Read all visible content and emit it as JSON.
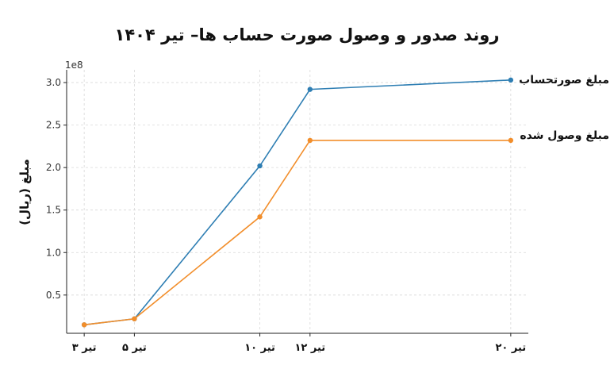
{
  "chart_data": {
    "type": "line",
    "title": "روند صدور و وصول صورت حساب ها– تیر ۱۴۰۴",
    "ylabel": "مبلغ (ریال)",
    "xlabel": "",
    "y_exponent_label": "1e8",
    "categories": [
      "تیر ۳",
      "تیر ۵",
      "تیر ۱۰",
      "تیر ۱۲",
      "تیر ۲۰"
    ],
    "x_positions": [
      3,
      5,
      10,
      12,
      20
    ],
    "xlim": [
      2.3,
      20.7
    ],
    "ylim": [
      0.05,
      3.15
    ],
    "yticks": [
      0.5,
      1.0,
      1.5,
      2.0,
      2.5,
      3.0
    ],
    "ytick_labels": [
      "0.5",
      "1.0",
      "1.5",
      "2.0",
      "2.5",
      "3.0"
    ],
    "grid": true,
    "series": [
      {
        "name": "مبلغ صورتحساب",
        "color": "#2e7eb3",
        "values": [
          0.15,
          0.22,
          2.02,
          2.92,
          3.03
        ]
      },
      {
        "name": "مبلغ وصول شده",
        "color": "#f28e2b",
        "values": [
          0.15,
          0.22,
          1.42,
          2.32,
          2.32
        ]
      }
    ]
  }
}
